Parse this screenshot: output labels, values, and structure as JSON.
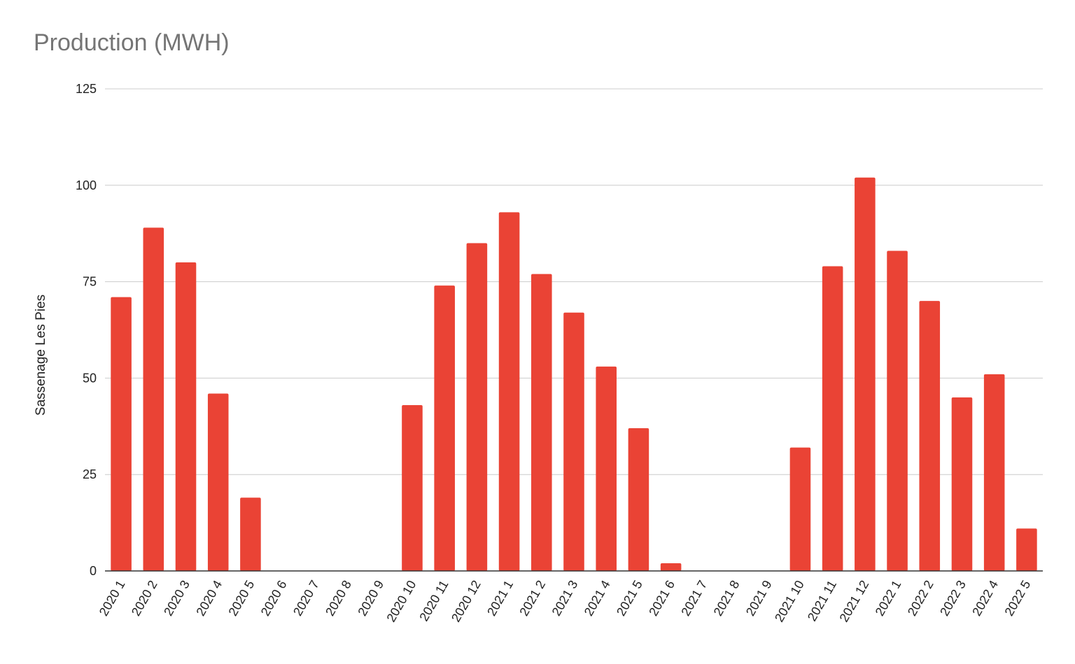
{
  "chart_data": {
    "type": "bar",
    "title": "Production (MWH)",
    "ylabel": "Sassenage Les Pies",
    "xlabel": "",
    "ylim": [
      0,
      125
    ],
    "yticks": [
      0,
      25,
      50,
      75,
      100,
      125
    ],
    "grid": true,
    "legend": "none",
    "categories": [
      "2020 1",
      "2020 2",
      "2020 3",
      "2020 4",
      "2020 5",
      "2020 6",
      "2020 7",
      "2020 8",
      "2020 9",
      "2020 10",
      "2020 11",
      "2020 12",
      "2021 1",
      "2021 2",
      "2021 3",
      "2021 4",
      "2021 5",
      "2021 6",
      "2021 7",
      "2021 8",
      "2021 9",
      "2021 10",
      "2021 11",
      "2021 12",
      "2022 1",
      "2022 2",
      "2022 3",
      "2022 4",
      "2022 5"
    ],
    "values": [
      71,
      89,
      80,
      46,
      19,
      0,
      0,
      0,
      0,
      43,
      74,
      85,
      93,
      77,
      67,
      53,
      37,
      2,
      0,
      0,
      0,
      32,
      79,
      102,
      83,
      70,
      45,
      51,
      11
    ],
    "colors": {
      "bar": "#ea4335",
      "grid": "#cccccc",
      "baseline": "#333333",
      "title": "#757575"
    }
  }
}
